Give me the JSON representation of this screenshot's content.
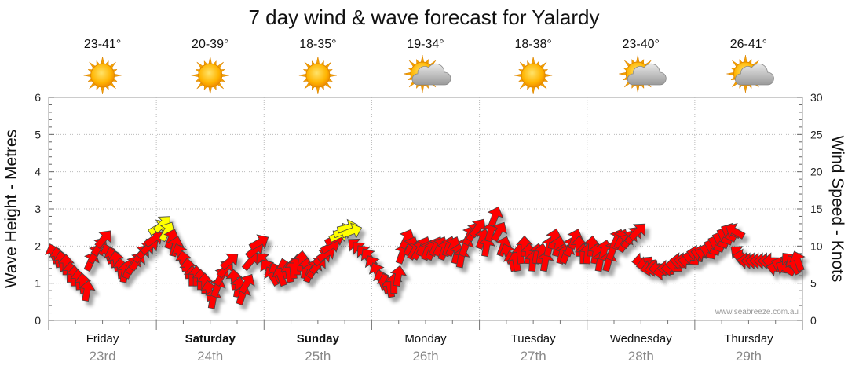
{
  "chart_data": {
    "type": "wind-wave-forecast",
    "title": "7 day wind & wave forecast for Yalardy",
    "y_left": {
      "label": "Wave Height - Metres",
      "ticks": [
        0,
        1,
        2,
        3,
        4,
        5,
        6
      ],
      "range": [
        0,
        6
      ]
    },
    "y_right": {
      "label": "Wind Speed - Knots",
      "ticks": [
        0,
        5,
        10,
        15,
        20,
        25,
        30
      ],
      "range": [
        0,
        30
      ]
    },
    "watermark": "www.seabreeze.com.au",
    "grid": true,
    "days": [
      {
        "day": "Friday",
        "date": "23rd",
        "temp": "23-41°",
        "weather": "sunny",
        "bold": false
      },
      {
        "day": "Saturday",
        "date": "24th",
        "temp": "20-39°",
        "weather": "sunny",
        "bold": true
      },
      {
        "day": "Sunday",
        "date": "25th",
        "temp": "18-35°",
        "weather": "sunny",
        "bold": true
      },
      {
        "day": "Monday",
        "date": "26th",
        "temp": "19-34°",
        "weather": "partly-cloudy",
        "bold": false
      },
      {
        "day": "Tuesday",
        "date": "27th",
        "temp": "18-38°",
        "weather": "sunny",
        "bold": false
      },
      {
        "day": "Wednesday",
        "date": "28th",
        "temp": "23-40°",
        "weather": "partly-cloudy",
        "bold": false
      },
      {
        "day": "Thursday",
        "date": "29th",
        "temp": "26-41°",
        "weather": "partly-cloudy",
        "bold": false
      }
    ],
    "colors": {
      "wind_arrow": "#ff0000",
      "wind_arrow_light": "#ffff00",
      "arrow_outline": "#444444",
      "grid": "#bbbbbb",
      "sun": "#f7a300"
    },
    "wind_knots": [
      9,
      8.5,
      8,
      7.5,
      6.5,
      6,
      5.5,
      5,
      4,
      8,
      9,
      10,
      11,
      9,
      8.5,
      8,
      7,
      6.5,
      7,
      7.5,
      8,
      9,
      9.5,
      10,
      11,
      12.5,
      13,
      12,
      11,
      10,
      9,
      8,
      7,
      6,
      6,
      5.5,
      5,
      4,
      3,
      4.5,
      6,
      7,
      8,
      5.5,
      4.5,
      3.5,
      5,
      8,
      9.5,
      10.5,
      8,
      7,
      6,
      6.5,
      6,
      7,
      6.5,
      7,
      7.5,
      8,
      7,
      6.5,
      7,
      7.5,
      8.5,
      9,
      10,
      11,
      11.5,
      12,
      12.5,
      12,
      10,
      9.5,
      9,
      8.5,
      7.5,
      6.5,
      5.5,
      5,
      4.5,
      5,
      6,
      9,
      11,
      10,
      9.5,
      9.5,
      10,
      9.5,
      9.5,
      10,
      10,
      9.5,
      10,
      10,
      9,
      8.5,
      10,
      11.5,
      12,
      12.5,
      11,
      10,
      12,
      14,
      12,
      10,
      9,
      8,
      8,
      9,
      10,
      9,
      8,
      9,
      9,
      8,
      10,
      11,
      10,
      9,
      9,
      10,
      11,
      10,
      9,
      9,
      10,
      9,
      8,
      9.5,
      8,
      9.5,
      11,
      11,
      10.5,
      11,
      11.5,
      12,
      8,
      7.5,
      7,
      7,
      7,
      6.5,
      7,
      7,
      7.5,
      8,
      8,
      8,
      8.5,
      9,
      9,
      9,
      9.5,
      10,
      10.5,
      11,
      11.5,
      12,
      12,
      9,
      8.5,
      8,
      8,
      8,
      8,
      8,
      8,
      8,
      7,
      7.5,
      7,
      8,
      7.5,
      8
    ],
    "wind_dir_deg": [
      160,
      170,
      170,
      180,
      180,
      180,
      175,
      175,
      190,
      205,
      210,
      215,
      220,
      160,
      165,
      170,
      175,
      190,
      200,
      210,
      215,
      220,
      225,
      230,
      235,
      240,
      225,
      210,
      200,
      195,
      160,
      170,
      175,
      180,
      180,
      180,
      180,
      170,
      190,
      200,
      210,
      220,
      230,
      175,
      190,
      200,
      210,
      220,
      230,
      240,
      140,
      145,
      150,
      155,
      160,
      165,
      170,
      175,
      180,
      185,
      190,
      200,
      210,
      220,
      230,
      235,
      240,
      245,
      245,
      250,
      255,
      250,
      130,
      135,
      140,
      145,
      150,
      155,
      160,
      165,
      170,
      180,
      190,
      200,
      205,
      205,
      210,
      210,
      205,
      200,
      200,
      205,
      205,
      200,
      200,
      205,
      195,
      190,
      200,
      205,
      210,
      215,
      200,
      190,
      195,
      200,
      210,
      200,
      160,
      165,
      170,
      175,
      180,
      185,
      185,
      190,
      190,
      190,
      195,
      195,
      195,
      195,
      200,
      200,
      200,
      180,
      180,
      185,
      185,
      190,
      190,
      195,
      195,
      200,
      205,
      205,
      210,
      215,
      220,
      225,
      85,
      80,
      80,
      80,
      85,
      85,
      90,
      90,
      90,
      95,
      95,
      95,
      100,
      100,
      100,
      105,
      105,
      110,
      110,
      110,
      115,
      115,
      120,
      130,
      100,
      95,
      90,
      90,
      90,
      90,
      90,
      90,
      100,
      110,
      120,
      140,
      150,
      160
    ]
  }
}
